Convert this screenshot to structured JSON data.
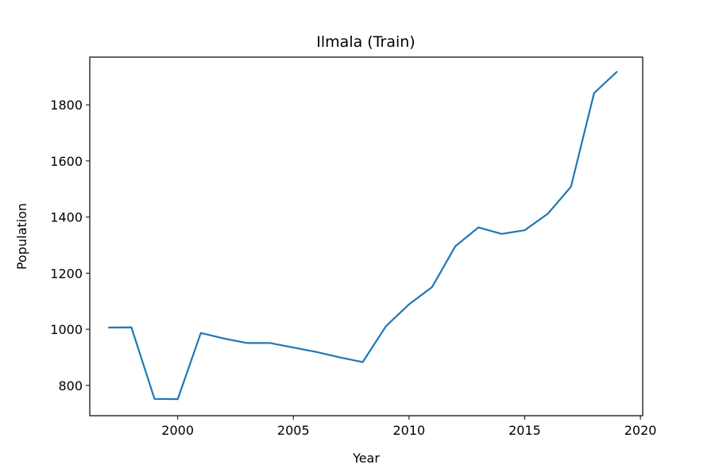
{
  "chart_data": {
    "type": "line",
    "title": "Ilmala (Train)",
    "xlabel": "Year",
    "ylabel": "Population",
    "xlim": [
      1996.2,
      2020.1
    ],
    "ylim": [
      692,
      1970
    ],
    "xticks": [
      2000,
      2005,
      2010,
      2015,
      2020
    ],
    "yticks": [
      800,
      1000,
      1200,
      1400,
      1600,
      1800
    ],
    "grid": false,
    "series": [
      {
        "color": "#1f77b4",
        "x": [
          1997,
          1998,
          1999,
          2000,
          2001,
          2002,
          2003,
          2004,
          2005,
          2006,
          2007,
          2008,
          2009,
          2010,
          2011,
          2012,
          2013,
          2014,
          2015,
          2016,
          2017,
          2018,
          2019
        ],
        "y": [
          1006,
          1007,
          752,
          751,
          987,
          967,
          951,
          951,
          935,
          919,
          900,
          883,
          1011,
          1089,
          1151,
          1296,
          1363,
          1340,
          1353,
          1412,
          1508,
          1842,
          1919
        ]
      }
    ]
  }
}
